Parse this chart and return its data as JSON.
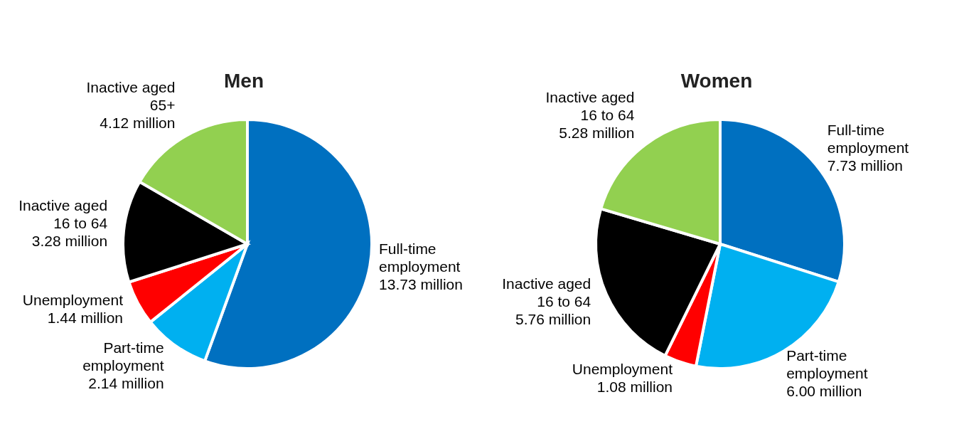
{
  "chart_data": [
    {
      "type": "pie",
      "title": "Men",
      "categories": [
        "Full-time employment",
        "Part-time employment",
        "Unemployment",
        "Inactive aged 16 to 64",
        "Inactive aged 65+"
      ],
      "values": [
        13.73,
        2.14,
        1.44,
        3.28,
        4.12
      ],
      "colors": [
        "#0070c0",
        "#00b0f0",
        "#ff0000",
        "#000000",
        "#92d050"
      ],
      "value_labels": [
        "13.73 million",
        "2.14 million",
        "1.44 million",
        "3.28 million",
        "4.12 million"
      ]
    },
    {
      "type": "pie",
      "title": "Women",
      "categories": [
        "Full-time employment",
        "Part-time employment",
        "Unemployment",
        "Inactive aged 16 to 64",
        "Inactive aged 16 to 64"
      ],
      "values": [
        7.73,
        6.0,
        1.08,
        5.76,
        5.28
      ],
      "colors": [
        "#0070c0",
        "#00b0f0",
        "#ff0000",
        "#000000",
        "#92d050"
      ],
      "value_labels": [
        "7.73 million",
        "6.00 million",
        "1.08 million",
        "5.76 million",
        "5.28 million"
      ]
    }
  ]
}
